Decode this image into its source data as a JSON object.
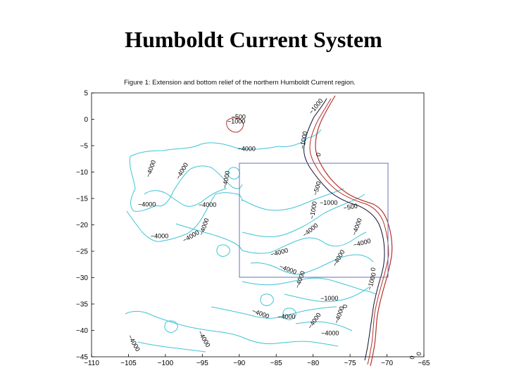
{
  "slide": {
    "title": "Humboldt Current System"
  },
  "figure": {
    "caption": "Figure 1: Extension and bottom relief of the northern Humboldt Current region.",
    "colors": {
      "deep_contour": "#3fc4d6",
      "shelf_contour": "#111133",
      "coast": "#b4322a",
      "box": "#6a6fb8",
      "frame": "#000000"
    },
    "x_axis": {
      "ticks": [
        "−110",
        "−105",
        "−100",
        "−95",
        "−90",
        "−85",
        "−80",
        "−75",
        "−70",
        "−65"
      ],
      "range": [
        -110,
        -65
      ]
    },
    "y_axis": {
      "ticks": [
        "5",
        "0",
        "−5",
        "−10",
        "−15",
        "−20",
        "−25",
        "−30",
        "−35",
        "−40",
        "−45"
      ],
      "range": [
        -45,
        5
      ]
    },
    "study_box": {
      "lon": [
        -90,
        -70
      ],
      "lat": [
        -30,
        -8
      ]
    },
    "contour_labels": [
      {
        "text": "−4000",
        "lon": -97.5,
        "lat": -10,
        "rot": -60
      },
      {
        "text": "−4000",
        "lon": -101.7,
        "lat": -9.5,
        "rot": -70
      },
      {
        "text": "−4000",
        "lon": -89,
        "lat": -6,
        "rot": 0
      },
      {
        "text": "−4000",
        "lon": -91.5,
        "lat": -11.5,
        "rot": -80
      },
      {
        "text": "−4000",
        "lon": -102.5,
        "lat": -16.5,
        "rot": 0
      },
      {
        "text": "−4000",
        "lon": -94.3,
        "lat": -16.6,
        "rot": 0
      },
      {
        "text": "−4000",
        "lon": -100.8,
        "lat": -22.5,
        "rot": 0
      },
      {
        "text": "−4000",
        "lon": -96.4,
        "lat": -22.5,
        "rot": -30
      },
      {
        "text": "−4000",
        "lon": -94.5,
        "lat": -20.5,
        "rot": -70
      },
      {
        "text": "−4000",
        "lon": -80.2,
        "lat": -21.3,
        "rot": -40
      },
      {
        "text": "−4000",
        "lon": -84.5,
        "lat": -25.6,
        "rot": -15
      },
      {
        "text": "−4000",
        "lon": -83.5,
        "lat": -28.8,
        "rot": 20
      },
      {
        "text": "−4000",
        "lon": -81.5,
        "lat": -30.5,
        "rot": -70
      },
      {
        "text": "−4000",
        "lon": -76.3,
        "lat": -26.5,
        "rot": -60
      },
      {
        "text": "−4000",
        "lon": -73.3,
        "lat": -23.8,
        "rot": -15
      },
      {
        "text": "−4000",
        "lon": -73.8,
        "lat": -20.5,
        "rot": -70
      },
      {
        "text": "−4000",
        "lon": -87.2,
        "lat": -37.2,
        "rot": 20
      },
      {
        "text": "−4000",
        "lon": -83.6,
        "lat": -37.8,
        "rot": 0
      },
      {
        "text": "−4000",
        "lon": -79.6,
        "lat": -38.4,
        "rot": -55
      },
      {
        "text": "−4000",
        "lon": -76.2,
        "lat": -37.2,
        "rot": -70
      },
      {
        "text": "−4000",
        "lon": -77.7,
        "lat": -40.9,
        "rot": 0
      },
      {
        "text": "−4000",
        "lon": -95,
        "lat": -41.8,
        "rot": 60
      },
      {
        "text": "−4000",
        "lon": -104.5,
        "lat": -42.6,
        "rot": 60
      },
      {
        "text": "−1000",
        "lon": -79.7,
        "lat": -17.3,
        "rot": -80
      },
      {
        "text": "−1000",
        "lon": -77.9,
        "lat": -16.2,
        "rot": 0
      },
      {
        "text": "−1000",
        "lon": -77.8,
        "lat": -34.3,
        "rot": 0
      },
      {
        "text": "−1000",
        "lon": -71.8,
        "lat": -30.8,
        "rot": -75
      },
      {
        "text": "−1000",
        "lon": -90.4,
        "lat": -0.8,
        "rot": 0
      },
      {
        "text": "−1000",
        "lon": -81,
        "lat": -4,
        "rot": -80
      },
      {
        "text": "−1000",
        "lon": -79.4,
        "lat": 2.2,
        "rot": -50
      },
      {
        "text": "−500",
        "lon": -79.2,
        "lat": -13.2,
        "rot": -75
      },
      {
        "text": "−500",
        "lon": -74.9,
        "lat": -17,
        "rot": -10
      },
      {
        "text": "−500",
        "lon": -90.1,
        "lat": 0.1,
        "rot": 0
      },
      {
        "text": "0",
        "lon": -79,
        "lat": -6.8,
        "rot": -75
      },
      {
        "text": "0",
        "lon": -75.4,
        "lat": -35.5,
        "rot": -80
      },
      {
        "text": "0",
        "lon": -65.4,
        "lat": -44.5,
        "rot": -80
      },
      {
        "text": "0",
        "lon": -66.3,
        "lat": -45.2,
        "rot": -80
      },
      {
        "text": "0",
        "lon": -71.6,
        "lat": -28.5,
        "rot": -80
      }
    ]
  }
}
